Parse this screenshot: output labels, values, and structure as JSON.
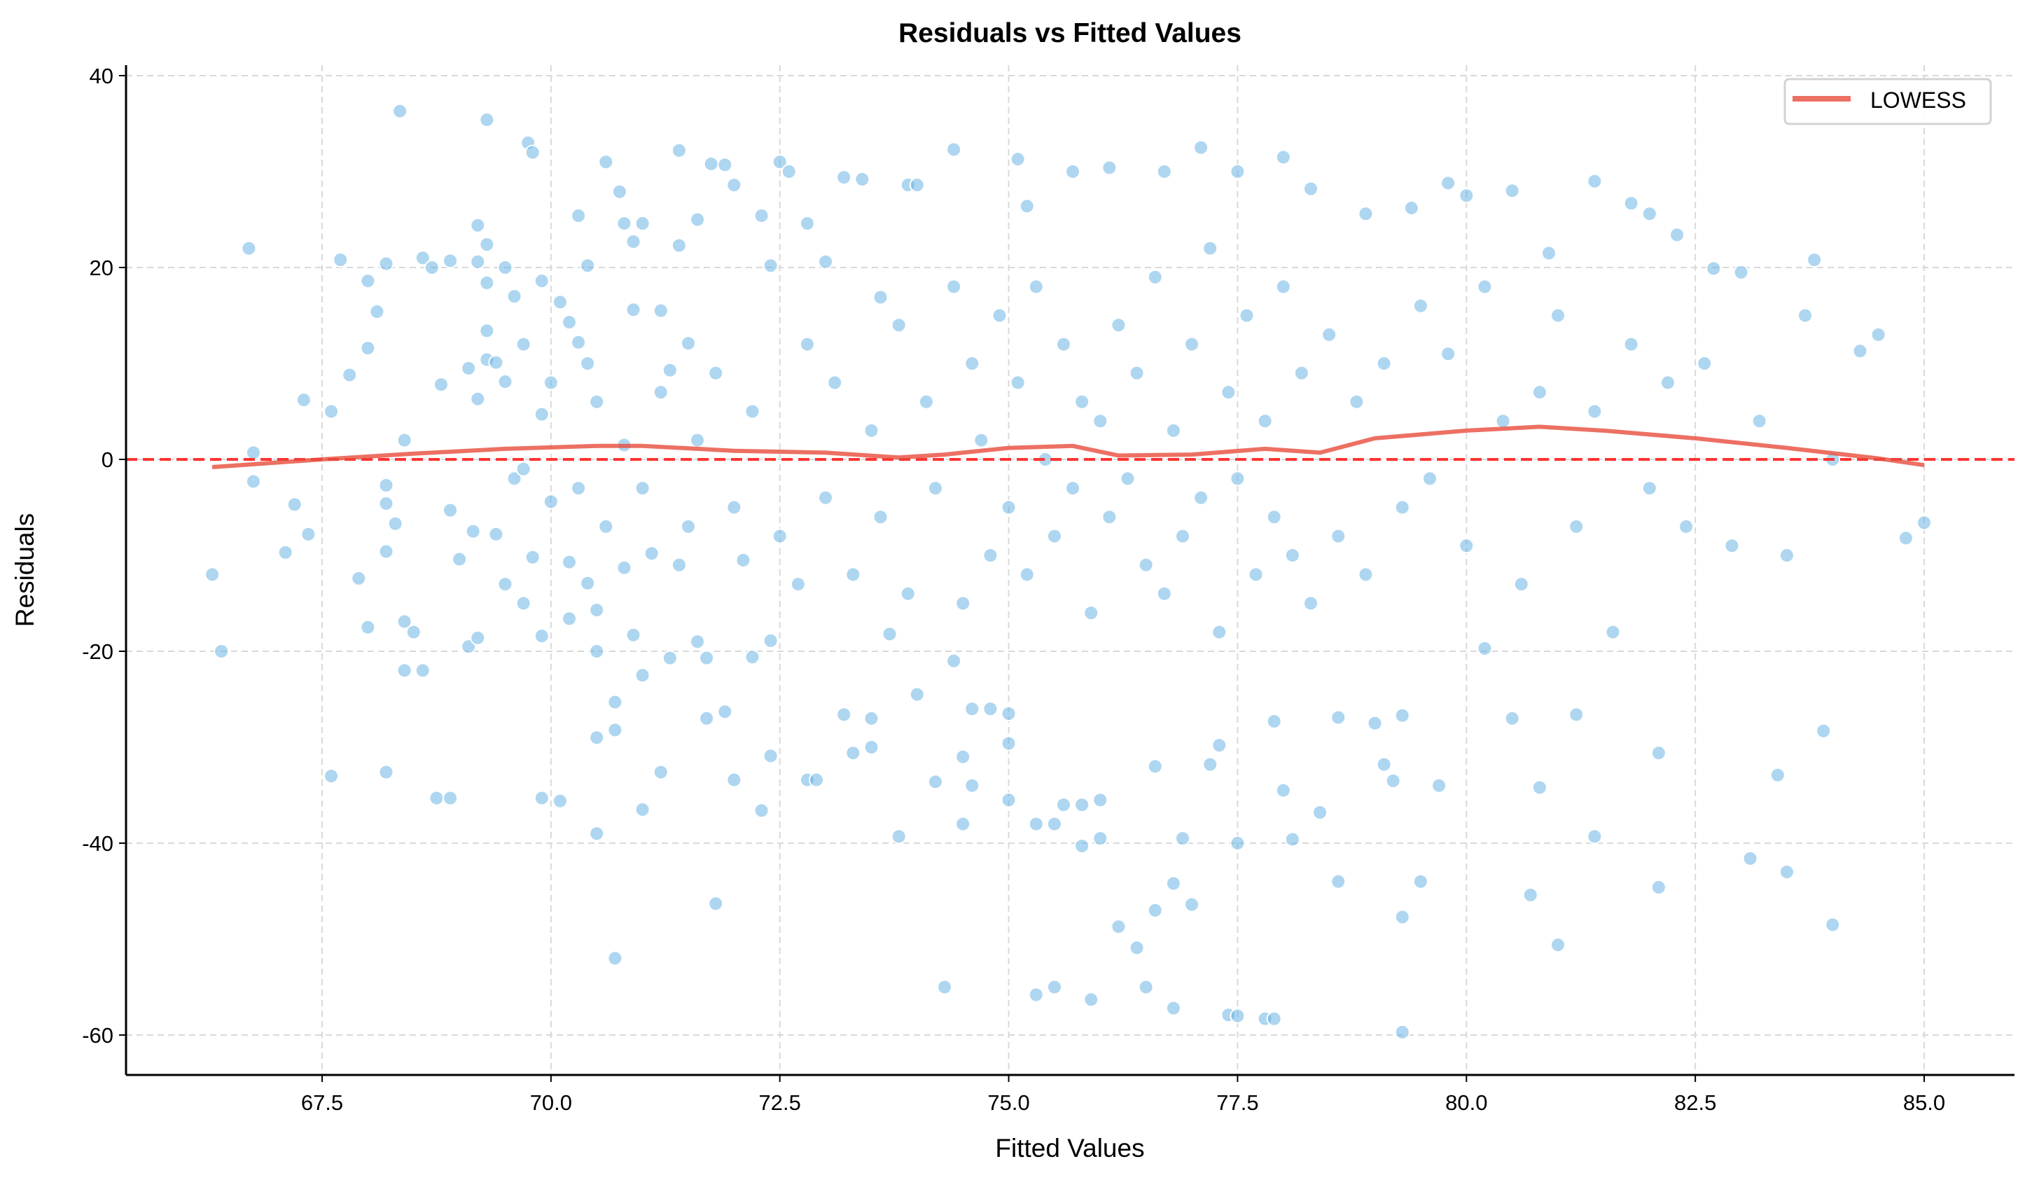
{
  "chart_data": {
    "type": "scatter",
    "title": "Residuals vs Fitted Values",
    "xlabel": "Fitted Values",
    "ylabel": "Residuals",
    "xlim": [
      65.4,
      86.0
    ],
    "ylim": [
      -64.5,
      41.5
    ],
    "xticks": [
      "67.5",
      "70.0",
      "72.5",
      "75.0",
      "77.5",
      "80.0",
      "82.5",
      "85.0"
    ],
    "yticks": [
      "-60",
      "-40",
      "-20",
      "0",
      "20",
      "40"
    ],
    "grid": true,
    "legend": {
      "placement": "top-right",
      "entries": [
        "LOWESS"
      ]
    },
    "colors": {
      "points": "#5dade2",
      "lowess": "#e74c3c",
      "zero_line": "#ff3333"
    },
    "reference_line": {
      "y": 0,
      "style": "dashed"
    },
    "points": [
      [
        66.3,
        -12
      ],
      [
        66.4,
        -20
      ],
      [
        66.7,
        22
      ],
      [
        66.75,
        0.7
      ],
      [
        66.75,
        -2.3
      ],
      [
        67.1,
        -9.7
      ],
      [
        67.2,
        -4.7
      ],
      [
        67.3,
        6.2
      ],
      [
        67.35,
        -7.8
      ],
      [
        67.6,
        -33
      ],
      [
        67.6,
        5
      ],
      [
        67.7,
        20.8
      ],
      [
        67.8,
        8.8
      ],
      [
        67.9,
        -12.4
      ],
      [
        68,
        11.6
      ],
      [
        68,
        18.6
      ],
      [
        68.1,
        15.4
      ],
      [
        68,
        -17.5
      ],
      [
        68.2,
        -9.6
      ],
      [
        68.2,
        -4.6
      ],
      [
        68.2,
        -2.7
      ],
      [
        68.2,
        -32.6
      ],
      [
        68.2,
        20.4
      ],
      [
        68.3,
        -6.7
      ],
      [
        68.35,
        36.3
      ],
      [
        68.4,
        -16.9
      ],
      [
        68.4,
        -22
      ],
      [
        68.4,
        2
      ],
      [
        68.5,
        -18
      ],
      [
        68.6,
        -22
      ],
      [
        68.6,
        21
      ],
      [
        68.7,
        20
      ],
      [
        68.8,
        7.8
      ],
      [
        68.75,
        -35.3
      ],
      [
        68.9,
        -35.3
      ],
      [
        68.9,
        -5.3
      ],
      [
        68.9,
        20.7
      ],
      [
        69,
        -10.4
      ],
      [
        69.1,
        -19.5
      ],
      [
        69.1,
        9.5
      ],
      [
        69.15,
        -7.5
      ],
      [
        69.2,
        -18.6
      ],
      [
        69.2,
        20.6
      ],
      [
        69.2,
        24.4
      ],
      [
        69.2,
        6.3
      ],
      [
        69.3,
        13.4
      ],
      [
        69.3,
        35.4
      ],
      [
        69.3,
        22.4
      ],
      [
        69.3,
        18.4
      ],
      [
        69.3,
        10.4
      ],
      [
        69.4,
        -7.8
      ],
      [
        69.4,
        10.1
      ],
      [
        69.5,
        20
      ],
      [
        69.5,
        -13
      ],
      [
        69.5,
        8.1
      ],
      [
        69.6,
        17
      ],
      [
        69.6,
        -2
      ],
      [
        69.7,
        -15
      ],
      [
        69.7,
        12
      ],
      [
        69.75,
        33
      ],
      [
        69.8,
        32
      ],
      [
        69.8,
        -10.2
      ],
      [
        69.9,
        18.6
      ],
      [
        69.9,
        -35.3
      ],
      [
        69.9,
        -18.4
      ],
      [
        69.9,
        4.7
      ],
      [
        70,
        -4.4
      ],
      [
        70.1,
        -35.6
      ],
      [
        70.1,
        16.4
      ],
      [
        70.2,
        -16.6
      ],
      [
        70.2,
        -10.7
      ],
      [
        70.2,
        14.3
      ],
      [
        70.3,
        25.4
      ],
      [
        70.3,
        12.2
      ],
      [
        70.4,
        -12.9
      ],
      [
        70.4,
        20.2
      ],
      [
        70.4,
        10
      ],
      [
        70.5,
        -20
      ],
      [
        70.5,
        -29
      ],
      [
        70.5,
        -15.7
      ],
      [
        70.5,
        -39
      ],
      [
        70.5,
        6
      ],
      [
        70.6,
        31
      ],
      [
        70.6,
        -7
      ],
      [
        70.7,
        -52
      ],
      [
        70.7,
        -25.3
      ],
      [
        70.7,
        -28.2
      ],
      [
        70.75,
        27.9
      ],
      [
        70.8,
        24.6
      ],
      [
        70.8,
        -11.3
      ],
      [
        70.9,
        -18.3
      ],
      [
        70.9,
        22.7
      ],
      [
        70.9,
        15.6
      ],
      [
        71,
        -22.5
      ],
      [
        71,
        -36.5
      ],
      [
        71,
        24.6
      ],
      [
        71.1,
        -9.8
      ],
      [
        71.2,
        -32.6
      ],
      [
        71.2,
        15.5
      ],
      [
        71.3,
        -20.7
      ],
      [
        71.3,
        9.3
      ],
      [
        71.4,
        32.2
      ],
      [
        71.4,
        22.3
      ],
      [
        71.5,
        -7
      ],
      [
        71.5,
        12.1
      ],
      [
        71.6,
        -19
      ],
      [
        71.6,
        25
      ],
      [
        71.7,
        -27
      ],
      [
        71.7,
        -20.7
      ],
      [
        71.75,
        30.8
      ],
      [
        71.8,
        -46.3
      ],
      [
        71.9,
        30.7
      ],
      [
        71.9,
        -26.3
      ],
      [
        72,
        -33.4
      ],
      [
        72,
        28.6
      ],
      [
        72.1,
        -10.5
      ],
      [
        72.2,
        -20.6
      ],
      [
        72.3,
        -36.6
      ],
      [
        72.3,
        25.4
      ],
      [
        72.4,
        -18.9
      ],
      [
        72.4,
        -30.9
      ],
      [
        72.4,
        20.2
      ],
      [
        72.5,
        31
      ],
      [
        72.6,
        30
      ],
      [
        72.7,
        -13
      ],
      [
        72.8,
        -33.4
      ],
      [
        72.8,
        24.6
      ],
      [
        72.9,
        -33.4
      ],
      [
        73,
        20.6
      ],
      [
        73.2,
        29.4
      ],
      [
        73.2,
        -26.6
      ],
      [
        73.3,
        -30.6
      ],
      [
        73.4,
        29.2
      ],
      [
        73.5,
        -30
      ],
      [
        73.5,
        -27
      ],
      [
        73.6,
        16.9
      ],
      [
        73.7,
        -18.2
      ],
      [
        73.8,
        -39.3
      ],
      [
        73.9,
        28.6
      ],
      [
        74,
        28.6
      ],
      [
        74,
        -24.5
      ],
      [
        74.2,
        -33.6
      ],
      [
        74.4,
        32.3
      ],
      [
        74.3,
        -55
      ],
      [
        74.4,
        -21
      ],
      [
        74.5,
        -31
      ],
      [
        74.5,
        -38
      ],
      [
        74.6,
        -34
      ],
      [
        74.6,
        -26
      ],
      [
        74.8,
        -26
      ],
      [
        75,
        -26.5
      ],
      [
        75,
        -35.5
      ],
      [
        75,
        -29.6
      ],
      [
        75.1,
        31.3
      ],
      [
        75.2,
        26.4
      ],
      [
        75.3,
        -38
      ],
      [
        75.3,
        -55.8
      ],
      [
        75.5,
        -38
      ],
      [
        75.5,
        -55
      ],
      [
        75.6,
        -36
      ],
      [
        75.7,
        30
      ],
      [
        75.8,
        -40.3
      ],
      [
        75.8,
        -36
      ],
      [
        75.9,
        -56.3
      ],
      [
        76,
        -35.5
      ],
      [
        76,
        -39.5
      ],
      [
        76.1,
        30.4
      ],
      [
        76.2,
        -48.7
      ],
      [
        76.4,
        -50.9
      ],
      [
        76.5,
        -55
      ],
      [
        76.6,
        -47
      ],
      [
        76.6,
        -32
      ],
      [
        76.7,
        30
      ],
      [
        76.8,
        -57.2
      ],
      [
        76.8,
        -44.2
      ],
      [
        76.9,
        -39.5
      ],
      [
        77,
        -46.4
      ],
      [
        77.1,
        32.5
      ],
      [
        77.2,
        -31.8
      ],
      [
        77.3,
        -29.8
      ],
      [
        77.4,
        -57.9
      ],
      [
        77.5,
        -58
      ],
      [
        77.5,
        30
      ],
      [
        77.5,
        -40
      ],
      [
        77.8,
        -58.3
      ],
      [
        77.9,
        -58.3
      ],
      [
        77.9,
        -27.3
      ],
      [
        78,
        31.5
      ],
      [
        78,
        -34.5
      ],
      [
        78.1,
        -39.6
      ],
      [
        78.3,
        28.2
      ],
      [
        78.4,
        -36.8
      ],
      [
        78.6,
        -44
      ],
      [
        78.6,
        -26.9
      ],
      [
        78.9,
        25.6
      ],
      [
        79,
        -27.5
      ],
      [
        79.1,
        -31.8
      ],
      [
        79.2,
        -33.5
      ],
      [
        79.3,
        -59.7
      ],
      [
        79.3,
        -26.7
      ],
      [
        79.3,
        -47.7
      ],
      [
        79.4,
        26.2
      ],
      [
        79.5,
        -44
      ],
      [
        79.7,
        -34
      ],
      [
        79.8,
        28.8
      ],
      [
        80,
        27.5
      ],
      [
        80.2,
        -19.7
      ],
      [
        80.5,
        28
      ],
      [
        80.5,
        -27
      ],
      [
        80.7,
        -45.4
      ],
      [
        80.8,
        -34.2
      ],
      [
        80.9,
        21.5
      ],
      [
        81,
        -50.6
      ],
      [
        81.2,
        -26.6
      ],
      [
        81.4,
        29
      ],
      [
        81.4,
        -39.3
      ],
      [
        81.8,
        26.7
      ],
      [
        82,
        25.6
      ],
      [
        82.1,
        -30.6
      ],
      [
        82.1,
        -44.6
      ],
      [
        82.3,
        23.4
      ],
      [
        82.7,
        19.9
      ],
      [
        83,
        19.5
      ],
      [
        83.1,
        -41.6
      ],
      [
        83.4,
        -32.9
      ],
      [
        83.5,
        -43
      ],
      [
        83.8,
        20.8
      ],
      [
        83.9,
        -28.3
      ],
      [
        84,
        -48.5
      ],
      [
        84.3,
        11.3
      ],
      [
        84.5,
        13
      ],
      [
        84.8,
        -8.2
      ],
      [
        85,
        -6.6
      ],
      [
        72.2,
        5
      ],
      [
        72.5,
        -8
      ],
      [
        72.8,
        12
      ],
      [
        73,
        -4
      ],
      [
        73.1,
        8
      ],
      [
        73.3,
        -12
      ],
      [
        73.5,
        3
      ],
      [
        73.6,
        -6
      ],
      [
        73.8,
        14
      ],
      [
        73.9,
        -14
      ],
      [
        74.1,
        6
      ],
      [
        74.2,
        -3
      ],
      [
        74.4,
        18
      ],
      [
        74.5,
        -15
      ],
      [
        74.6,
        10
      ],
      [
        74.7,
        2
      ],
      [
        74.8,
        -10
      ],
      [
        74.9,
        15
      ],
      [
        75,
        -5
      ],
      [
        75.1,
        8
      ],
      [
        75.2,
        -12
      ],
      [
        75.3,
        18
      ],
      [
        75.4,
        0
      ],
      [
        75.5,
        -8
      ],
      [
        75.6,
        12
      ],
      [
        75.7,
        -3
      ],
      [
        75.8,
        6
      ],
      [
        75.9,
        -16
      ],
      [
        76,
        4
      ],
      [
        76.1,
        -6
      ],
      [
        76.2,
        14
      ],
      [
        76.3,
        -2
      ],
      [
        76.4,
        9
      ],
      [
        76.5,
        -11
      ],
      [
        76.6,
        19
      ],
      [
        76.7,
        -14
      ],
      [
        76.8,
        3
      ],
      [
        76.9,
        -8
      ],
      [
        77,
        12
      ],
      [
        77.1,
        -4
      ],
      [
        77.2,
        22
      ],
      [
        77.3,
        -18
      ],
      [
        77.4,
        7
      ],
      [
        77.5,
        -2
      ],
      [
        77.6,
        15
      ],
      [
        77.7,
        -12
      ],
      [
        77.8,
        4
      ],
      [
        77.9,
        -6
      ],
      [
        78,
        18
      ],
      [
        78.1,
        -10
      ],
      [
        78.2,
        9
      ],
      [
        78.3,
        -15
      ],
      [
        78.5,
        13
      ],
      [
        78.6,
        -8
      ],
      [
        78.8,
        6
      ],
      [
        78.9,
        -12
      ],
      [
        79.1,
        10
      ],
      [
        79.3,
        -5
      ],
      [
        79.5,
        16
      ],
      [
        79.6,
        -2
      ],
      [
        79.8,
        11
      ],
      [
        80,
        -9
      ],
      [
        80.2,
        18
      ],
      [
        80.4,
        4
      ],
      [
        80.6,
        -13
      ],
      [
        80.8,
        7
      ],
      [
        81,
        15
      ],
      [
        81.2,
        -7
      ],
      [
        81.4,
        5
      ],
      [
        81.6,
        -18
      ],
      [
        81.8,
        12
      ],
      [
        82,
        -3
      ],
      [
        82.2,
        8
      ],
      [
        82.4,
        -7
      ],
      [
        82.6,
        10
      ],
      [
        82.9,
        -9
      ],
      [
        83.2,
        4
      ],
      [
        83.5,
        -10
      ],
      [
        83.7,
        15
      ],
      [
        84,
        0
      ],
      [
        71,
        -3
      ],
      [
        71.2,
        7
      ],
      [
        71.4,
        -11
      ],
      [
        71.6,
        2
      ],
      [
        71.8,
        9
      ],
      [
        72,
        -5
      ],
      [
        70,
        8
      ],
      [
        70.3,
        -3
      ],
      [
        69.7,
        -1
      ],
      [
        70.8,
        1.5
      ]
    ],
    "lowess": [
      [
        66.3,
        -0.8
      ],
      [
        67.5,
        0
      ],
      [
        68.5,
        0.6
      ],
      [
        69.5,
        1.1
      ],
      [
        70.5,
        1.4
      ],
      [
        71,
        1.4
      ],
      [
        72,
        0.9
      ],
      [
        73,
        0.7
      ],
      [
        73.8,
        0.2
      ],
      [
        74.3,
        0.5
      ],
      [
        75,
        1.2
      ],
      [
        75.7,
        1.4
      ],
      [
        76.2,
        0.4
      ],
      [
        77,
        0.5
      ],
      [
        77.8,
        1.1
      ],
      [
        78.4,
        0.7
      ],
      [
        79,
        2.2
      ],
      [
        80,
        3.0
      ],
      [
        80.8,
        3.4
      ],
      [
        81.5,
        3.0
      ],
      [
        82.5,
        2.2
      ],
      [
        83.5,
        1.2
      ],
      [
        84.5,
        0.1
      ],
      [
        85,
        -0.6
      ]
    ]
  }
}
